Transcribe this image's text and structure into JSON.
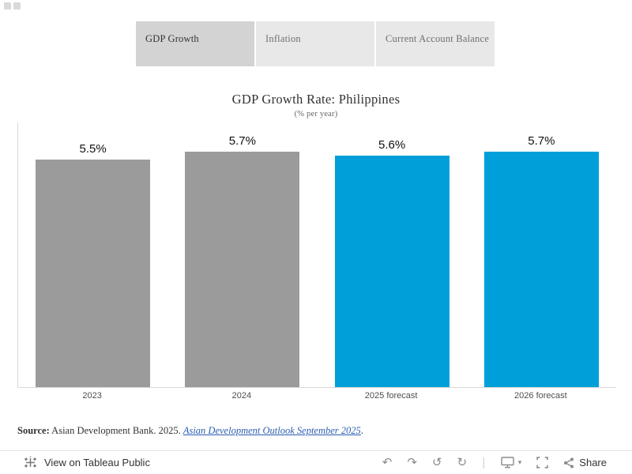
{
  "tabs": [
    {
      "label": "GDP Growth",
      "active": true
    },
    {
      "label": "Inflation",
      "active": false
    },
    {
      "label": "Current Account Balance",
      "active": false
    }
  ],
  "chart": {
    "title": "GDP Growth Rate: Philippines",
    "subtitle": "(% per year)"
  },
  "chart_data": {
    "type": "bar",
    "title": "GDP Growth Rate: Philippines",
    "subtitle": "(% per year)",
    "categories": [
      "2023",
      "2024",
      "2025 forecast",
      "2026 forecast"
    ],
    "values": [
      5.5,
      5.7,
      5.6,
      5.7
    ],
    "value_labels": [
      "5.5%",
      "5.7%",
      "5.6%",
      "5.7%"
    ],
    "bar_colors": [
      "#9b9b9b",
      "#9b9b9b",
      "#009fda",
      "#009fda"
    ],
    "xlabel": "",
    "ylabel": "",
    "ylim": [
      0,
      6.4
    ],
    "grid": false,
    "legend": false
  },
  "source": {
    "prefix": "Source:",
    "text": " Asian Development Bank. 2025. ",
    "link": "Asian Development Outlook September 2025",
    "suffix": "."
  },
  "toolbar": {
    "view_label": "View on Tableau Public",
    "share_label": "Share",
    "icon_names": [
      "tableau-logo",
      "undo",
      "redo",
      "replay",
      "refresh",
      "download",
      "fullscreen",
      "share"
    ]
  },
  "icons": {
    "undo": "↶",
    "redo": "↷",
    "replay": "↺",
    "refresh": "↻",
    "separator": "|",
    "download_caret": "▾"
  },
  "colors": {
    "bar_gray": "#9b9b9b",
    "bar_blue": "#009fda",
    "tab_active_bg": "#d3d3d3",
    "tab_inactive_bg": "#e8e8e8",
    "link_blue": "#2a5db0",
    "icon_gray": "#8b8b8b"
  }
}
